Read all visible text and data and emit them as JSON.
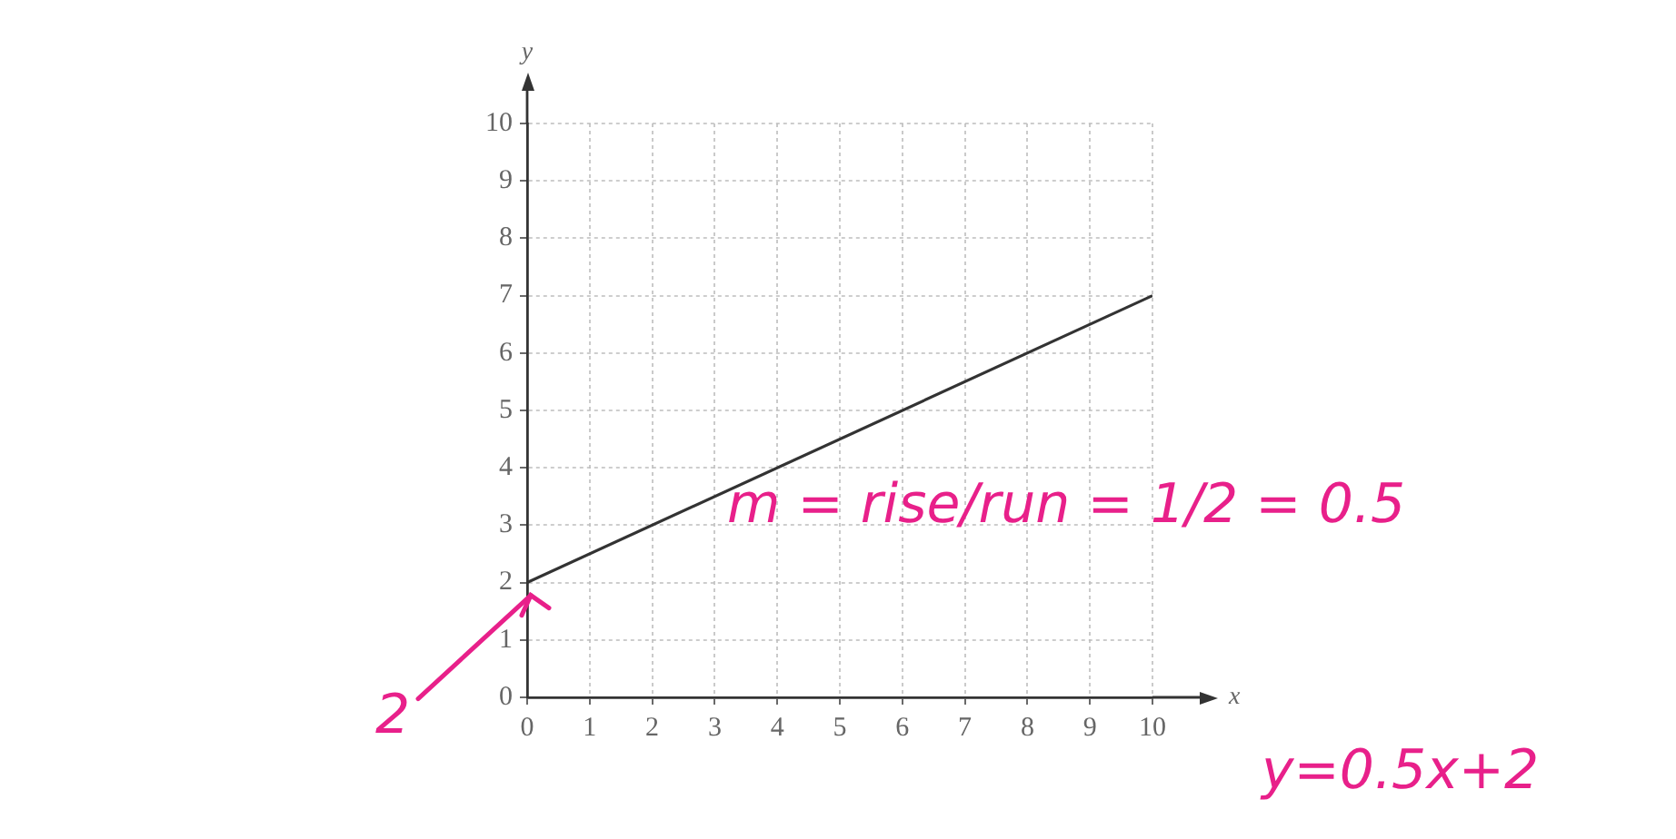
{
  "chart_data": {
    "type": "line",
    "xlabel": "x",
    "ylabel": "y",
    "x": [
      0,
      10
    ],
    "series": [
      {
        "color": "#333333",
        "values": [
          2,
          7
        ]
      }
    ],
    "xlim": [
      0,
      10
    ],
    "ylim": [
      0,
      10
    ],
    "xticks": [
      0,
      1,
      2,
      3,
      4,
      5,
      6,
      7,
      8,
      9,
      10
    ],
    "yticks": [
      0,
      1,
      2,
      3,
      4,
      5,
      6,
      7,
      8,
      9,
      10
    ],
    "grid": true,
    "legend": false,
    "marker": "none",
    "line_style": "solid",
    "annotations": [
      {
        "text": "2",
        "x": 0,
        "y": 2
      },
      "m = rise/run = 1/2 = 0.5",
      "y=0.5x+2"
    ]
  }
}
